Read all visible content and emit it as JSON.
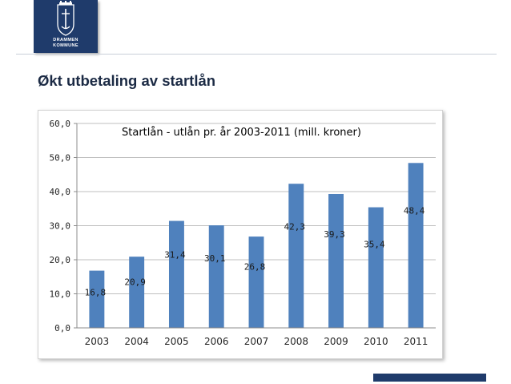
{
  "slide": {
    "title": "Økt utbetaling av startlån",
    "logo_text": [
      "DRAMMEN",
      "KOMMUNE"
    ]
  },
  "colors": {
    "bar": "#4f81bd",
    "navy": "#1f3b6b",
    "title_text": "#1b2a44"
  },
  "chart_data": {
    "type": "bar",
    "title": "Startlån - utlån pr. år 2003-2011  (mill. kroner)",
    "xlabel": "",
    "ylabel": "",
    "categories": [
      "2003",
      "2004",
      "2005",
      "2006",
      "2007",
      "2008",
      "2009",
      "2010",
      "2011"
    ],
    "values": [
      16.8,
      20.9,
      31.4,
      30.1,
      26.8,
      42.3,
      39.3,
      35.4,
      48.4
    ],
    "data_labels": [
      "16,8",
      "20,9",
      "31,4",
      "30,1",
      "26,8",
      "42,3",
      "39,3",
      "35,4",
      "48,4"
    ],
    "ylim": [
      0,
      60
    ],
    "yticks": [
      "0,0",
      "10,0",
      "20,0",
      "30,0",
      "40,0",
      "50,0",
      "60,0"
    ],
    "grid": true,
    "legend": false
  }
}
